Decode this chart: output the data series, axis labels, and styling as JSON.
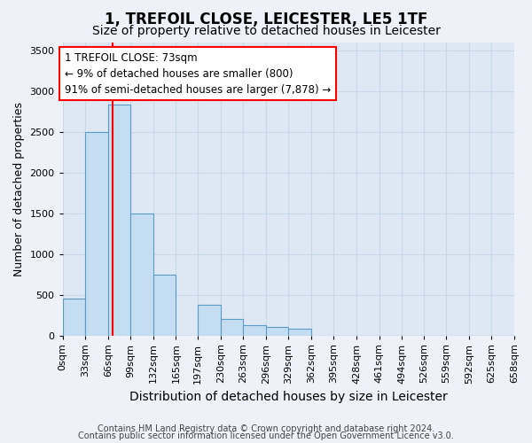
{
  "title": "1, TREFOIL CLOSE, LEICESTER, LE5 1TF",
  "subtitle": "Size of property relative to detached houses in Leicester",
  "xlabel": "Distribution of detached houses by size in Leicester",
  "ylabel": "Number of detached properties",
  "bar_edges": [
    0,
    33,
    66,
    99,
    132,
    165,
    197,
    230,
    263,
    296,
    329,
    362,
    395,
    428,
    461,
    494,
    526,
    559,
    592,
    625,
    658
  ],
  "bar_heights": [
    450,
    2500,
    2830,
    1500,
    750,
    0,
    380,
    200,
    130,
    100,
    80,
    0,
    0,
    0,
    0,
    0,
    0,
    0,
    0,
    0
  ],
  "bar_color": "#c5ddf0",
  "bar_edge_color": "#5b9bc8",
  "red_line_x": 73,
  "ylim": [
    0,
    3600
  ],
  "yticks": [
    0,
    500,
    1000,
    1500,
    2000,
    2500,
    3000,
    3500
  ],
  "annotation_text": "1 TREFOIL CLOSE: 73sqm\n← 9% of detached houses are smaller (800)\n91% of semi-detached houses are larger (7,878) →",
  "footnote1": "Contains HM Land Registry data © Crown copyright and database right 2024.",
  "footnote2": "Contains public sector information licensed under the Open Government Licence v3.0.",
  "bg_color": "#eef2f8",
  "plot_bg_color": "#dde8f4",
  "grid_color": "#c8d8ea",
  "title_fontsize": 12,
  "subtitle_fontsize": 10,
  "xlabel_fontsize": 10,
  "ylabel_fontsize": 9,
  "tick_fontsize": 8,
  "annot_fontsize": 8.5
}
